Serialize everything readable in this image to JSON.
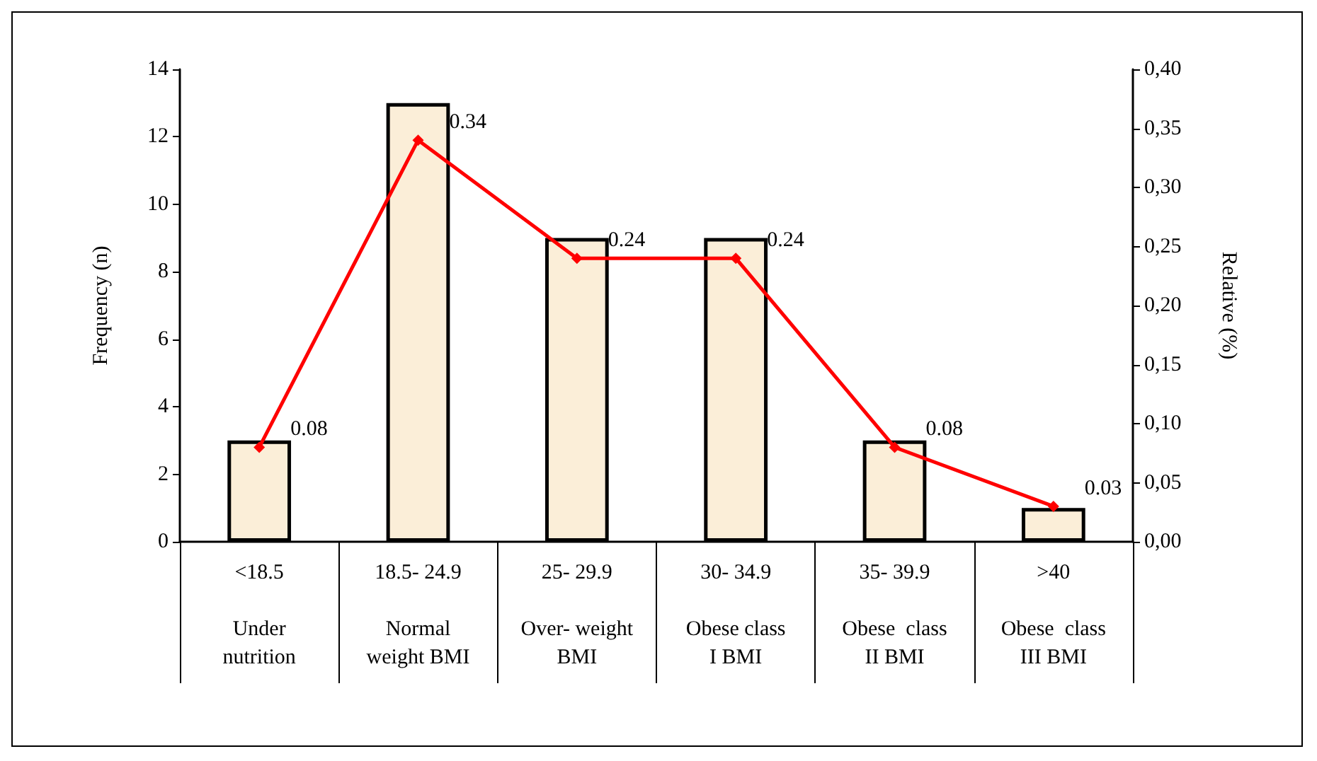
{
  "chart_data": {
    "type": "bar",
    "ylabel": "Frequency (n)",
    "y2label": "Relative (%)",
    "categories": [
      "<18.5\n\nUnder\nnutrition",
      "18.5- 24.9\n\nNormal\nweight BMI",
      "25- 29.9\n\nOver- weight\nBMI",
      "30- 34.9\n\nObese class\nI BMI",
      "35- 39.9\n\nObese  class\nII BMI",
      ">40\n\nObese  class\nIII BMI"
    ],
    "series": [
      {
        "color": "#fbeed8",
        "values": [
          3,
          13,
          9,
          9,
          3,
          1
        ]
      },
      {
        "type": "line",
        "axis": "y2",
        "color": "#ff0000",
        "marker": "diamond",
        "values": [
          0.08,
          0.34,
          0.24,
          0.24,
          0.08,
          0.03
        ],
        "value_labels": [
          "0.08",
          "0.34",
          "0.24",
          "0.24",
          "0.08",
          "0.03"
        ]
      }
    ],
    "ylim": [
      0,
      14
    ],
    "yticks": [
      0,
      2,
      4,
      6,
      8,
      10,
      12,
      14
    ],
    "y2lim": [
      0,
      0.4
    ],
    "y2ticks": [
      {
        "value": 0,
        "label": "0,00"
      },
      {
        "value": 0.05,
        "label": "0,05"
      },
      {
        "value": 0.1,
        "label": "0,10"
      },
      {
        "value": 0.15,
        "label": "0,15"
      },
      {
        "value": 0.2,
        "label": "0,20"
      },
      {
        "value": 0.25,
        "label": "0,25"
      },
      {
        "value": 0.3,
        "label": "0,30"
      },
      {
        "value": 0.35,
        "label": "0,35"
      },
      {
        "value": 0.4,
        "label": "0,40"
      }
    ],
    "grid": false
  }
}
